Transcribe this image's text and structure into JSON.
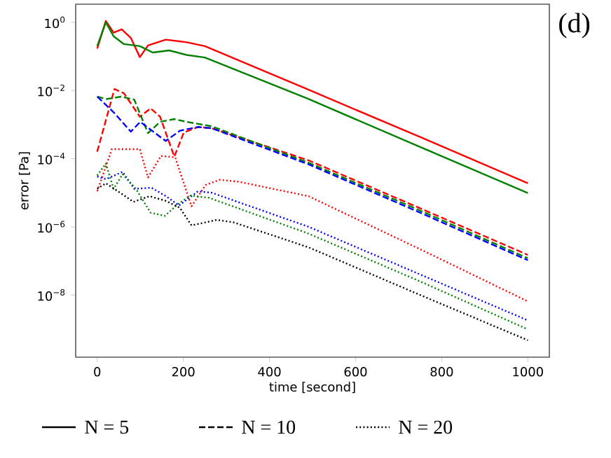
{
  "chart_data": {
    "type": "line",
    "xlabel": "time [second]",
    "ylabel": "error [Pa]",
    "log": "y",
    "xlim": [
      -50,
      1050
    ],
    "ylim": [
      1.5e-10,
      3.4
    ],
    "xticks": [
      0,
      200,
      400,
      600,
      800,
      1000
    ],
    "yticks": [
      {
        "value": 1,
        "label": "10$^{0}$"
      },
      {
        "value": 0.01,
        "label": "10$^{−2}$"
      },
      {
        "value": 0.0001,
        "label": "10$^{−4}$"
      },
      {
        "value": 1e-06,
        "label": "10$^{−6}$"
      },
      {
        "value": 1e-08,
        "label": "10$^{−8}$"
      }
    ],
    "annotations": [
      "(d)",
      "N = 5",
      "N = 10",
      "N = 20"
    ],
    "series": [
      {
        "color": "#ff0000",
        "line_style": "solid",
        "x": [
          0,
          20,
          38,
          57,
          78,
          99,
          118,
          159,
          208,
          250,
          491,
          750,
          1000
        ],
        "values": [
          0.17,
          1.1,
          0.5,
          0.62,
          0.35,
          0.095,
          0.21,
          0.31,
          0.26,
          0.2,
          0.0105,
          0.00043,
          1.9e-05
        ]
      },
      {
        "color": "#008000",
        "line_style": "solid",
        "x": [
          0,
          20,
          38,
          62,
          99,
          129,
          167,
          208,
          250,
          491,
          750,
          1000
        ],
        "values": [
          0.2,
          1.0,
          0.39,
          0.23,
          0.2,
          0.13,
          0.15,
          0.11,
          0.093,
          0.0056,
          0.00022,
          9.8e-06
        ]
      },
      {
        "color": "#ff0000",
        "line_style": "dashed",
        "x": [
          0,
          40,
          62,
          99,
          124,
          146,
          179,
          201,
          234,
          266,
          491,
          750,
          1000
        ],
        "values": [
          0.00016,
          0.011,
          0.0083,
          0.0017,
          0.003,
          0.0017,
          0.000115,
          0.00058,
          0.00085,
          0.00078,
          8.9e-05,
          3.5e-06,
          1.5e-07
        ]
      },
      {
        "color": "#008000",
        "line_style": "dashed",
        "x": [
          0,
          21,
          56,
          86,
          118,
          146,
          179,
          208,
          266,
          491,
          750,
          1000
        ],
        "values": [
          0.0066,
          0.0056,
          0.0066,
          0.0054,
          0.00056,
          0.0012,
          0.00145,
          0.0012,
          0.00089,
          7.6e-05,
          3e-06,
          1.2e-07
        ]
      },
      {
        "color": "#0000ff",
        "line_style": "dashed",
        "x": [
          0,
          38,
          78,
          100,
          159,
          192,
          234,
          266,
          491,
          750,
          1000
        ],
        "values": [
          0.0066,
          0.0023,
          0.00062,
          0.0012,
          0.00033,
          0.00066,
          0.00085,
          0.00078,
          6.8e-05,
          2.6e-06,
          1.05e-07
        ]
      },
      {
        "color": "#ff0000",
        "line_style": "dotted",
        "x": [
          0,
          34,
          63,
          99,
          118,
          148,
          181,
          219,
          252,
          285,
          329,
          491,
          750,
          1000
        ],
        "values": [
          1.1e-05,
          0.00019,
          0.00019,
          0.00019,
          2.8e-05,
          0.00012,
          0.00011,
          4e-06,
          1.7e-05,
          2.4e-05,
          2.1e-05,
          7.9e-06,
          2.2e-07,
          6.5e-09
        ]
      },
      {
        "color": "#0000ff",
        "line_style": "dotted",
        "x": [
          0,
          20,
          59,
          86,
          126,
          160,
          190,
          234,
          266,
          491,
          750,
          1000
        ],
        "values": [
          3e-05,
          2.5e-05,
          4.1e-05,
          1.3e-05,
          1.4e-05,
          7.9e-06,
          4.2e-06,
          1.1e-05,
          1e-05,
          1e-06,
          4e-08,
          1.8e-09
        ]
      },
      {
        "color": "#008000",
        "line_style": "dotted",
        "x": [
          0,
          20,
          38,
          59,
          90,
          124,
          157,
          190,
          217,
          260,
          491,
          750,
          1000
        ],
        "values": [
          3.2e-05,
          7.2e-05,
          1.3e-05,
          3.5e-05,
          1.3e-05,
          2.6e-06,
          2.1e-06,
          4.9e-06,
          8.3e-06,
          7.1e-06,
          6.3e-07,
          2.5e-08,
          9.8e-10
        ]
      },
      {
        "color": "#000000",
        "line_style": "dotted",
        "x": [
          0,
          20,
          57,
          84,
          122,
          159,
          192,
          219,
          278,
          317,
          491,
          750,
          1000
        ],
        "values": [
          1.3e-05,
          1.9e-05,
          9.3e-06,
          5.4e-06,
          7.9e-06,
          5.8e-06,
          3.6e-06,
          1.1e-06,
          1.6e-06,
          1.35e-06,
          2.5e-07,
          1e-08,
          4.7e-10
        ]
      }
    ]
  }
}
